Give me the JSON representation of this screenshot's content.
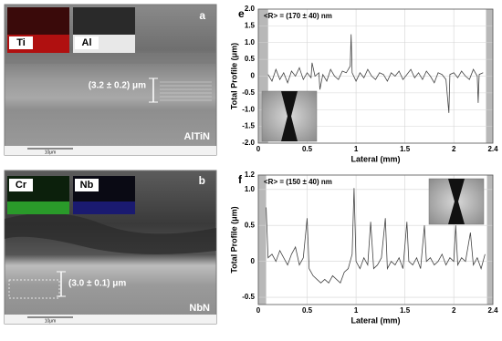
{
  "chart_data": [
    {
      "type": "line",
      "panel_label": "e",
      "annotation": "<R> = (170 ± 40) nm",
      "x_label": "Lateral (mm)",
      "y_label": "Total Profile (μm)",
      "color": "#444444",
      "grid": true,
      "shaded": [
        [
          0,
          0.1
        ],
        [
          2.33,
          2.4
        ]
      ],
      "xlim": [
        0,
        2.4
      ],
      "ylim": [
        -2,
        2
      ],
      "xticks": [
        0,
        0.5,
        1,
        1.5,
        2,
        2.4
      ],
      "yticks": [
        {
          "value": 2,
          "label": "2.0"
        },
        {
          "value": 1.5,
          "label": "1.5"
        },
        {
          "value": 1,
          "label": "1.0"
        },
        {
          "value": 0.5,
          "label": "0.5"
        },
        0,
        {
          "value": -0.5,
          "label": "-0.5"
        },
        {
          "value": -1,
          "label": "-1.0"
        },
        {
          "value": -1.5,
          "label": "-1.5"
        },
        {
          "value": -2,
          "label": "-2.0"
        }
      ],
      "x": [
        0.1,
        0.14,
        0.18,
        0.22,
        0.26,
        0.3,
        0.34,
        0.38,
        0.42,
        0.46,
        0.5,
        0.54,
        0.55,
        0.58,
        0.62,
        0.63,
        0.66,
        0.7,
        0.74,
        0.78,
        0.82,
        0.86,
        0.9,
        0.94,
        0.95,
        0.96,
        1.0,
        1.04,
        1.08,
        1.12,
        1.16,
        1.2,
        1.24,
        1.28,
        1.32,
        1.36,
        1.4,
        1.44,
        1.48,
        1.52,
        1.56,
        1.6,
        1.64,
        1.68,
        1.72,
        1.76,
        1.8,
        1.84,
        1.88,
        1.92,
        1.95,
        1.96,
        2.0,
        2.04,
        2.08,
        2.12,
        2.16,
        2.2,
        2.24,
        2.25,
        2.26,
        2.3
      ],
      "values": [
        0.05,
        -0.15,
        0.2,
        -0.1,
        0.1,
        -0.2,
        0.15,
        0,
        0.25,
        -0.1,
        0.1,
        -0.05,
        0.4,
        0,
        0.1,
        -0.4,
        0.05,
        -0.15,
        0.2,
        0,
        -0.1,
        0.15,
        0.1,
        0.3,
        1.25,
        0.1,
        -0.15,
        0.1,
        -0.05,
        0.2,
        0,
        -0.1,
        0.1,
        0.05,
        -0.15,
        0.1,
        0,
        0.15,
        -0.1,
        0.05,
        0.2,
        -0.05,
        0.1,
        -0.1,
        0.15,
        0,
        -0.2,
        0.1,
        0.05,
        -0.1,
        -1.1,
        0.05,
        0.1,
        -0.05,
        0.15,
        0,
        -0.1,
        0.2,
        0,
        -0.8,
        0.05,
        0.1
      ]
    },
    {
      "type": "line",
      "panel_label": "f",
      "annotation": "<R> = (150 ± 40) nm",
      "x_label": "Lateral (mm)",
      "y_label": "Total Profile (μm)",
      "color": "#444444",
      "grid": true,
      "shaded": [
        [
          0,
          0.08
        ],
        [
          2.34,
          2.4
        ]
      ],
      "xlim": [
        0,
        2.4
      ],
      "ylim": [
        -0.6,
        1.2
      ],
      "xticks": [
        0,
        0.5,
        1,
        1.5,
        2,
        2.4
      ],
      "yticks": [
        1.2,
        {
          "value": 1,
          "label": "1.0"
        },
        0.5,
        0,
        -0.5
      ],
      "x": [
        0.08,
        0.1,
        0.14,
        0.18,
        0.22,
        0.26,
        0.3,
        0.34,
        0.38,
        0.42,
        0.46,
        0.5,
        0.52,
        0.56,
        0.6,
        0.64,
        0.68,
        0.72,
        0.76,
        0.8,
        0.84,
        0.88,
        0.92,
        0.96,
        0.98,
        1.0,
        1.04,
        1.08,
        1.12,
        1.15,
        1.18,
        1.22,
        1.26,
        1.3,
        1.32,
        1.36,
        1.4,
        1.44,
        1.48,
        1.52,
        1.54,
        1.58,
        1.62,
        1.66,
        1.7,
        1.72,
        1.76,
        1.8,
        1.84,
        1.88,
        1.92,
        1.96,
        2.0,
        2.02,
        2.04,
        2.08,
        2.12,
        2.17,
        2.2,
        2.24,
        2.28,
        2.32
      ],
      "values": [
        0.75,
        0.05,
        0.1,
        0,
        0.15,
        0.05,
        -0.05,
        0.1,
        0.2,
        -0.05,
        0.05,
        0.6,
        -0.1,
        -0.2,
        -0.25,
        -0.3,
        -0.25,
        -0.3,
        -0.2,
        -0.25,
        -0.3,
        -0.15,
        -0.1,
        0.1,
        1.02,
        0,
        -0.1,
        0.05,
        -0.05,
        0.55,
        -0.1,
        -0.05,
        0.05,
        0.6,
        -0.1,
        0,
        -0.05,
        0.05,
        -0.1,
        0.55,
        0,
        -0.05,
        0.05,
        -0.1,
        0.5,
        0,
        0.05,
        -0.05,
        0,
        0.1,
        -0.05,
        0.05,
        0,
        0.5,
        -0.05,
        0.05,
        0,
        0.4,
        -0.05,
        0.05,
        -0.1,
        0.1
      ]
    }
  ],
  "panels": [
    {
      "label": "a",
      "material": "AlTiN",
      "maps": [
        "Ti",
        "Al"
      ],
      "thickness": "(3.2 ± 0.2) μm",
      "scale_bar": "10μm"
    },
    {
      "label": "b",
      "material": "NbN",
      "maps": [
        "Cr",
        "Nb"
      ],
      "thickness": "(3.0 ± 0.1) μm",
      "scale_bar": "10μm"
    }
  ]
}
